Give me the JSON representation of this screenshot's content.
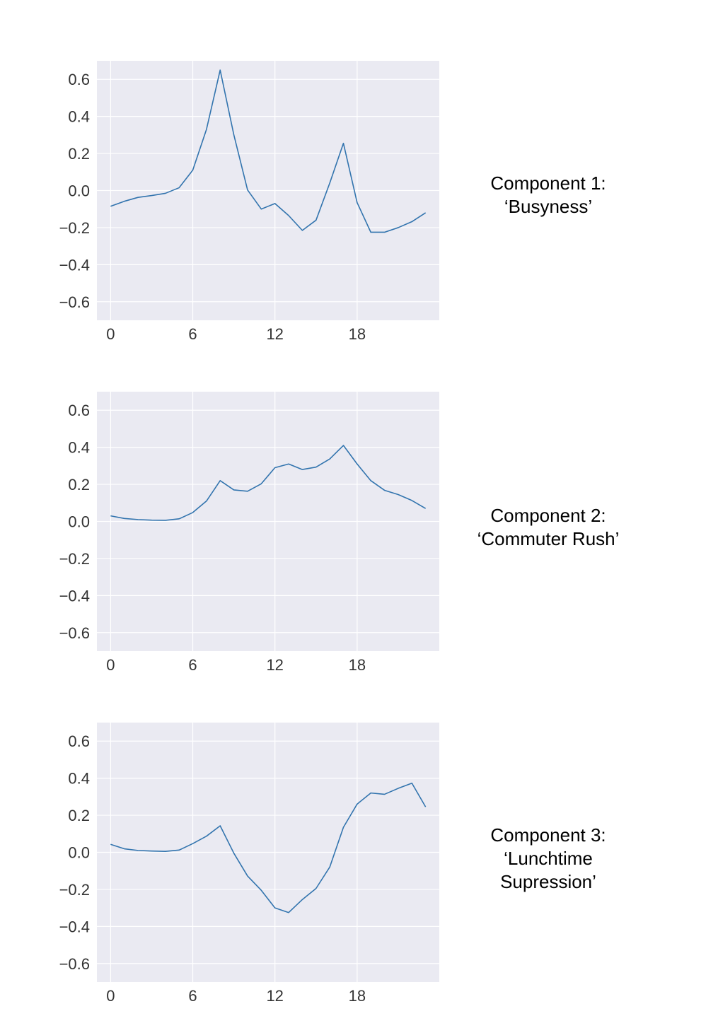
{
  "chart_data": [
    {
      "type": "line",
      "title": "",
      "xlabel": "",
      "ylabel": "",
      "annotation": [
        "Component 1:",
        "‘Busyness’"
      ],
      "x": [
        0,
        1,
        2,
        3,
        4,
        5,
        6,
        7,
        8,
        9,
        10,
        11,
        12,
        13,
        14,
        15,
        16,
        17,
        18,
        19,
        20,
        21,
        22,
        23
      ],
      "series": [
        {
          "values": [
            -0.085,
            -0.058,
            -0.037,
            -0.027,
            -0.015,
            0.015,
            0.11,
            0.33,
            0.65,
            0.3,
            0.003,
            -0.1,
            -0.07,
            -0.135,
            -0.215,
            -0.16,
            0.04,
            0.255,
            -0.065,
            -0.225,
            -0.225,
            -0.2,
            -0.168,
            -0.12
          ]
        }
      ],
      "xticks": [
        "0",
        "6",
        "12",
        "18"
      ],
      "yticks": [
        "0.6",
        "0.4",
        "0.2",
        "0.0",
        "−0.2",
        "−0.4",
        "−0.6"
      ],
      "xlim": [
        -1,
        24
      ],
      "ylim": [
        -0.7,
        0.7
      ],
      "grid": true,
      "line_color": "#3274ae",
      "background_color": "#eaeaf2"
    },
    {
      "type": "line",
      "title": "",
      "xlabel": "",
      "ylabel": "",
      "annotation": [
        "Component 2:",
        "‘Commuter Rush’"
      ],
      "x": [
        0,
        1,
        2,
        3,
        4,
        5,
        6,
        7,
        8,
        9,
        10,
        11,
        12,
        13,
        14,
        15,
        16,
        17,
        18,
        19,
        20,
        21,
        22,
        23
      ],
      "series": [
        {
          "values": [
            0.03,
            0.016,
            0.01,
            0.007,
            0.006,
            0.014,
            0.048,
            0.11,
            0.22,
            0.17,
            0.163,
            0.203,
            0.29,
            0.31,
            0.28,
            0.293,
            0.337,
            0.41,
            0.31,
            0.22,
            0.168,
            0.145,
            0.113,
            0.07
          ]
        }
      ],
      "xticks": [
        "0",
        "6",
        "12",
        "18"
      ],
      "yticks": [
        "0.6",
        "0.4",
        "0.2",
        "0.0",
        "−0.2",
        "−0.4",
        "−0.6"
      ],
      "xlim": [
        -1,
        24
      ],
      "ylim": [
        -0.7,
        0.7
      ],
      "grid": true,
      "line_color": "#3274ae",
      "background_color": "#eaeaf2"
    },
    {
      "type": "line",
      "title": "",
      "xlabel": "",
      "ylabel": "",
      "annotation": [
        "Component 3:",
        "‘Lunchtime",
        "Supression’"
      ],
      "x": [
        0,
        1,
        2,
        3,
        4,
        5,
        6,
        7,
        8,
        9,
        10,
        11,
        12,
        13,
        14,
        15,
        16,
        17,
        18,
        19,
        20,
        21,
        22,
        23
      ],
      "series": [
        {
          "values": [
            0.043,
            0.019,
            0.01,
            0.007,
            0.005,
            0.012,
            0.047,
            0.087,
            0.143,
            -0.005,
            -0.128,
            -0.205,
            -0.3,
            -0.325,
            -0.255,
            -0.195,
            -0.08,
            0.135,
            0.26,
            0.32,
            0.313,
            0.345,
            0.373,
            0.245
          ]
        }
      ],
      "xticks": [
        "0",
        "6",
        "12",
        "18"
      ],
      "yticks": [
        "0.6",
        "0.4",
        "0.2",
        "0.0",
        "−0.2",
        "−0.4",
        "−0.6"
      ],
      "xlim": [
        -1,
        24
      ],
      "ylim": [
        -0.7,
        0.7
      ],
      "grid": true,
      "line_color": "#3274ae",
      "background_color": "#eaeaf2"
    }
  ]
}
